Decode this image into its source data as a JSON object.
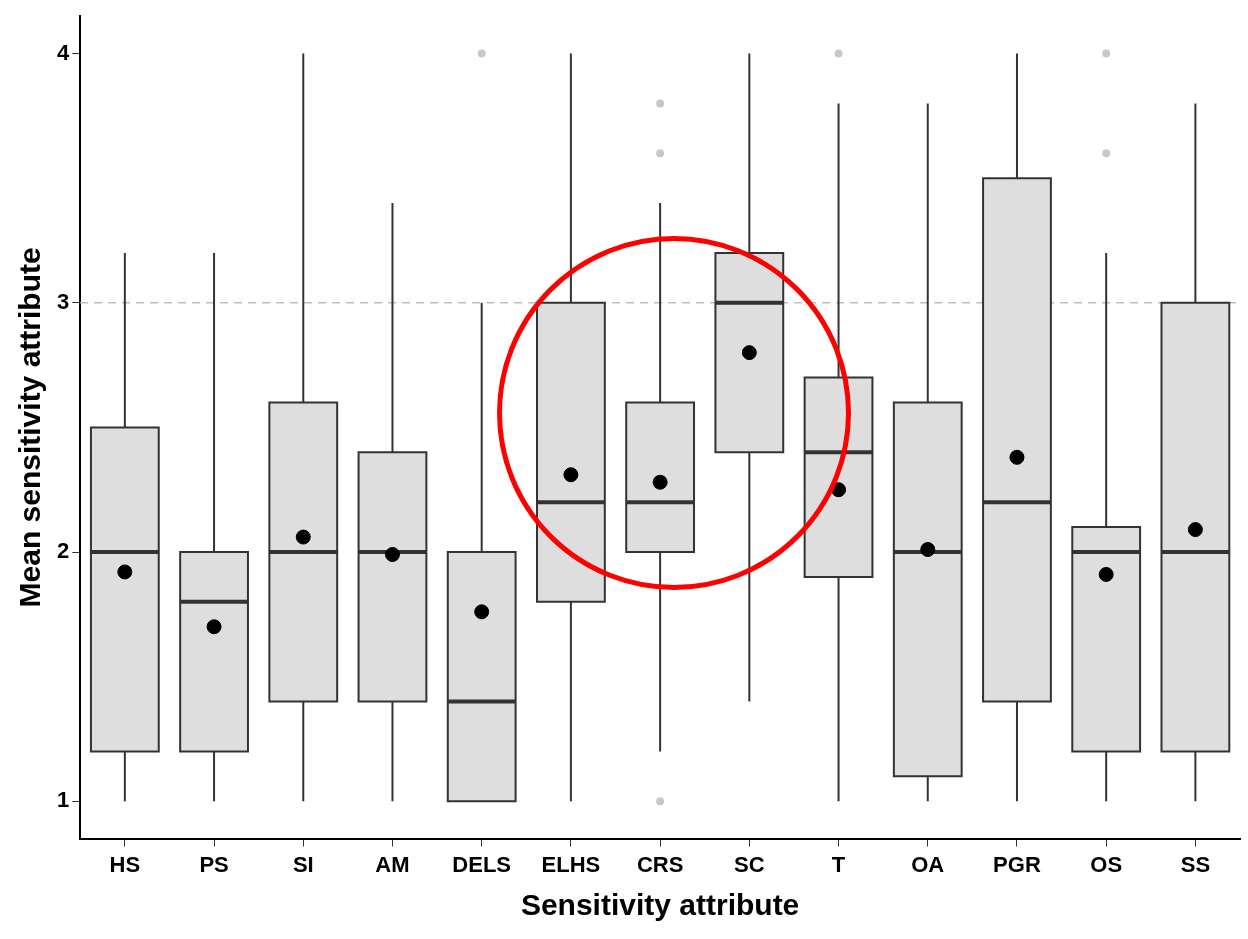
{
  "chart_data": {
    "type": "box",
    "xlabel": "Sensitivity attribute",
    "ylabel": "Mean sensitivity attribute",
    "categories": [
      "HS",
      "PS",
      "SI",
      "AM",
      "DELS",
      "ELHS",
      "CRS",
      "SC",
      "T",
      "OA",
      "PGR",
      "OS",
      "SS"
    ],
    "color": "#dedede",
    "boxes": [
      {
        "low": 1,
        "q1": 1.2,
        "median": 2,
        "q3": 2.5,
        "high": 3.2
      },
      {
        "low": 1,
        "q1": 1.2,
        "median": 1.8,
        "q3": 2,
        "high": 3.2
      },
      {
        "low": 1,
        "q1": 1.4,
        "median": 2,
        "q3": 2.6,
        "high": 4
      },
      {
        "low": 1,
        "q1": 1.4,
        "median": 2,
        "q3": 2.4,
        "high": 3.4
      },
      {
        "low": 1,
        "q1": 1,
        "median": 1.4,
        "q3": 2,
        "high": 3,
        "outliers": [
          4
        ]
      },
      {
        "low": 1,
        "q1": 1.8,
        "median": 2.2,
        "q3": 3,
        "high": 4
      },
      {
        "low": 1.2,
        "q1": 2,
        "median": 2.2,
        "q3": 2.6,
        "high": 3.4,
        "outliers": [
          1,
          3.6,
          3.8
        ]
      },
      {
        "low": 1.4,
        "q1": 2.4,
        "median": 3,
        "q3": 3.2,
        "high": 4
      },
      {
        "low": 1,
        "q1": 1.9,
        "median": 2.4,
        "q3": 2.7,
        "high": 3.8,
        "outliers": [
          4
        ]
      },
      {
        "low": 1,
        "q1": 1.1,
        "median": 2,
        "q3": 2.6,
        "high": 3.8
      },
      {
        "low": 1,
        "q1": 1.4,
        "median": 2.2,
        "q3": 3.5,
        "high": 4
      },
      {
        "low": 1,
        "q1": 1.2,
        "median": 2,
        "q3": 2.1,
        "high": 3.2,
        "outliers": [
          3.6,
          4
        ]
      },
      {
        "low": 1,
        "q1": 1.2,
        "median": 2,
        "q3": 3,
        "high": 3.8
      }
    ],
    "series": [
      {
        "type": "scatter",
        "color": "#000000",
        "x": [
          "HS",
          "PS",
          "SI",
          "AM",
          "DELS",
          "ELHS",
          "CRS",
          "SC",
          "T",
          "OA",
          "PGR",
          "OS",
          "SS"
        ],
        "values": [
          1.92,
          1.7,
          2.06,
          1.99,
          1.76,
          2.31,
          2.28,
          2.8,
          2.25,
          2.01,
          2.38,
          1.91,
          2.09
        ]
      }
    ],
    "marker": "circle",
    "ylim": [
      0.85,
      4.15
    ],
    "yticks": [
      1,
      2,
      3,
      4
    ],
    "ref_lines": [
      {
        "axis": "y",
        "value": 3,
        "color": "#bebebe",
        "line_style": "dashed"
      }
    ],
    "grid": false,
    "legend": false
  }
}
